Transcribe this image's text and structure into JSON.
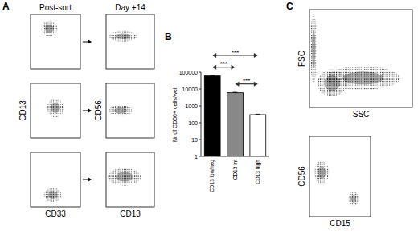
{
  "chart_data": [
    {
      "type": "dotplot",
      "panel": "A",
      "title": "Post-sort",
      "xlim": [
        0,
        100
      ],
      "ylim": [
        0,
        100
      ],
      "tick_labels": false,
      "populations": [
        {
          "x": 38,
          "y": 74,
          "x_spread": 16,
          "y_spread": 14
        }
      ]
    },
    {
      "type": "dotplot",
      "title": "Day +14",
      "xlim": [
        0,
        100
      ],
      "ylim": [
        0,
        100
      ],
      "tick_labels": false,
      "populations": [
        {
          "x": 35,
          "y": 60,
          "x_spread": 28,
          "y_spread": 10
        }
      ]
    },
    {
      "type": "dotplot",
      "y_label": "CD13",
      "xlim": [
        0,
        100
      ],
      "ylim": [
        0,
        100
      ],
      "tick_labels": false,
      "populations": [
        {
          "x": 50,
          "y": 55,
          "x_spread": 17,
          "y_spread": 17
        }
      ]
    },
    {
      "type": "dotplot",
      "y_label": "CD56",
      "xlim": [
        0,
        100
      ],
      "ylim": [
        0,
        100
      ],
      "tick_labels": false,
      "populations": [
        {
          "x": 30,
          "y": 50,
          "x_spread": 24,
          "y_spread": 10
        }
      ]
    },
    {
      "type": "dotplot",
      "x_label": "CD33",
      "xlim": [
        0,
        100
      ],
      "ylim": [
        0,
        100
      ],
      "tick_labels": false,
      "populations": [
        {
          "x": 45,
          "y": 22,
          "x_spread": 17,
          "y_spread": 13
        }
      ]
    },
    {
      "type": "dotplot",
      "x_label": "CD13",
      "xlim": [
        0,
        100
      ],
      "ylim": [
        0,
        100
      ],
      "tick_labels": false,
      "populations": [
        {
          "x": 38,
          "y": 55,
          "x_spread": 34,
          "y_spread": 16
        }
      ]
    },
    {
      "type": "bar",
      "panel": "B",
      "y_label": "Nr of CD56+ cells/well",
      "log": "y",
      "categories": [
        "CD13 low/neg",
        "CD13 int",
        "CD13 high"
      ],
      "values": [
        60000,
        6000,
        300
      ],
      "errors": [
        3000,
        400,
        20
      ],
      "colors": [
        "#000000",
        "#888888",
        "#ffffff"
      ],
      "ylim": [
        1,
        100000
      ],
      "yticks": [
        1,
        10,
        100,
        1000,
        10000,
        100000
      ],
      "grid": false,
      "annotations": [
        {
          "text": "***",
          "from": 0,
          "to": 2,
          "y": 1000000
        },
        {
          "text": "***",
          "from": 0,
          "to": 1,
          "y": 200000
        },
        {
          "text": "***",
          "from": 1,
          "to": 2,
          "y": 20000
        }
      ]
    },
    {
      "type": "dotplot",
      "panel": "C",
      "x_label": "SSC",
      "y_label": "FSC",
      "xlim": [
        0,
        100
      ],
      "ylim": [
        0,
        100
      ],
      "tick_labels": false,
      "populations": [
        {
          "x": 4,
          "y": 60,
          "x_spread": 3,
          "y_spread": 36
        },
        {
          "x": 22,
          "y": 25,
          "x_spread": 14,
          "y_spread": 14
        },
        {
          "x": 52,
          "y": 30,
          "x_spread": 36,
          "y_spread": 12
        }
      ]
    },
    {
      "type": "dotplot",
      "x_label": "CD15",
      "y_label": "CD56",
      "xlim": [
        0,
        100
      ],
      "ylim": [
        0,
        100
      ],
      "tick_labels": false,
      "populations": [
        {
          "x": 20,
          "y": 55,
          "x_spread": 12,
          "y_spread": 14
        },
        {
          "x": 72,
          "y": 22,
          "x_spread": 8,
          "y_spread": 9
        }
      ]
    }
  ]
}
